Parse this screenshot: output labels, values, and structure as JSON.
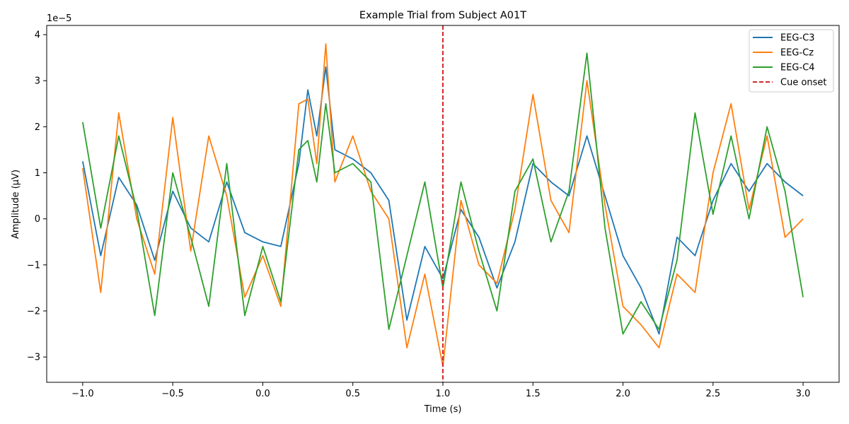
{
  "chart_data": {
    "type": "line",
    "title": "Example Trial from Subject A01T",
    "xlabel": "Time (s)",
    "ylabel": "Amplitude (µV)",
    "y_offset_label": "1e−5",
    "xlim": [
      -1.2,
      3.2
    ],
    "ylim": [
      -3.55,
      4.2
    ],
    "x_ticks": [
      -1.0,
      -0.5,
      0.0,
      0.5,
      1.0,
      1.5,
      2.0,
      2.5,
      3.0
    ],
    "x_tick_labels": [
      "−1.0",
      "−0.5",
      "0.0",
      "0.5",
      "1.0",
      "1.5",
      "2.0",
      "2.5",
      "3.0"
    ],
    "y_ticks": [
      -3,
      -2,
      -1,
      0,
      1,
      2,
      3,
      4
    ],
    "y_tick_labels": [
      "−3",
      "−2",
      "−1",
      "0",
      "1",
      "2",
      "3",
      "4"
    ],
    "grid": false,
    "legend_position": "top-right",
    "cue": {
      "x": 1.0,
      "name": "Cue onset",
      "color": "#d62728"
    },
    "series": [
      {
        "name": "EEG-C3",
        "color": "#1f77b4",
        "x": [
          -1.0,
          -0.9,
          -0.8,
          -0.7,
          -0.6,
          -0.5,
          -0.4,
          -0.3,
          -0.2,
          -0.1,
          0.0,
          0.1,
          0.2,
          0.25,
          0.3,
          0.35,
          0.4,
          0.5,
          0.6,
          0.7,
          0.8,
          0.9,
          1.0,
          1.1,
          1.2,
          1.3,
          1.4,
          1.5,
          1.6,
          1.7,
          1.8,
          1.9,
          2.0,
          2.1,
          2.2,
          2.3,
          2.4,
          2.5,
          2.6,
          2.7,
          2.8,
          2.9,
          3.0
        ],
        "values": [
          1.25,
          -0.8,
          0.9,
          0.3,
          -0.9,
          0.6,
          -0.2,
          -0.5,
          0.8,
          -0.3,
          -0.5,
          -0.6,
          1.2,
          2.8,
          1.8,
          3.3,
          1.5,
          1.3,
          1.0,
          0.4,
          -2.2,
          -0.6,
          -1.3,
          0.2,
          -0.4,
          -1.5,
          -0.5,
          1.2,
          0.8,
          0.5,
          1.8,
          0.5,
          -0.8,
          -1.5,
          -2.5,
          -0.4,
          -0.8,
          0.4,
          1.2,
          0.6,
          1.2,
          0.8,
          0.5
        ]
      },
      {
        "name": "EEG-Cz",
        "color": "#ff7f0e",
        "x": [
          -1.0,
          -0.9,
          -0.8,
          -0.7,
          -0.6,
          -0.5,
          -0.4,
          -0.3,
          -0.2,
          -0.1,
          0.0,
          0.1,
          0.2,
          0.25,
          0.3,
          0.35,
          0.4,
          0.5,
          0.6,
          0.7,
          0.8,
          0.9,
          1.0,
          1.1,
          1.2,
          1.3,
          1.4,
          1.5,
          1.6,
          1.7,
          1.8,
          1.9,
          2.0,
          2.1,
          2.2,
          2.3,
          2.4,
          2.5,
          2.6,
          2.7,
          2.8,
          2.9,
          3.0
        ],
        "values": [
          1.1,
          -1.6,
          2.3,
          0.0,
          -1.2,
          2.2,
          -0.7,
          1.8,
          0.5,
          -1.7,
          -0.8,
          -1.9,
          2.5,
          2.6,
          1.2,
          3.8,
          0.8,
          1.8,
          0.6,
          0.0,
          -2.8,
          -1.2,
          -3.2,
          0.4,
          -1.0,
          -1.4,
          0.2,
          2.7,
          0.4,
          -0.3,
          3.0,
          0.3,
          -1.9,
          -2.3,
          -2.8,
          -1.2,
          -1.6,
          1.0,
          2.5,
          0.2,
          1.8,
          -0.4,
          0.0
        ]
      },
      {
        "name": "EEG-C4",
        "color": "#2ca02c",
        "x": [
          -1.0,
          -0.9,
          -0.8,
          -0.7,
          -0.6,
          -0.5,
          -0.4,
          -0.3,
          -0.2,
          -0.1,
          0.0,
          0.1,
          0.2,
          0.25,
          0.3,
          0.35,
          0.4,
          0.5,
          0.6,
          0.7,
          0.8,
          0.9,
          1.0,
          1.1,
          1.2,
          1.3,
          1.4,
          1.5,
          1.6,
          1.7,
          1.8,
          1.9,
          2.0,
          2.1,
          2.2,
          2.3,
          2.4,
          2.5,
          2.6,
          2.7,
          2.8,
          2.9,
          3.0
        ],
        "values": [
          2.1,
          -0.2,
          1.8,
          0.2,
          -2.1,
          1.0,
          -0.4,
          -1.9,
          1.2,
          -2.1,
          -0.6,
          -1.8,
          1.5,
          1.7,
          0.8,
          2.5,
          1.0,
          1.2,
          0.8,
          -2.4,
          -0.8,
          0.8,
          -1.5,
          0.8,
          -0.7,
          -2.0,
          0.6,
          1.3,
          -0.5,
          0.6,
          3.6,
          -0.2,
          -2.5,
          -1.8,
          -2.4,
          -0.9,
          2.3,
          0.1,
          1.8,
          0.0,
          2.0,
          0.6,
          -1.7
        ]
      }
    ]
  }
}
